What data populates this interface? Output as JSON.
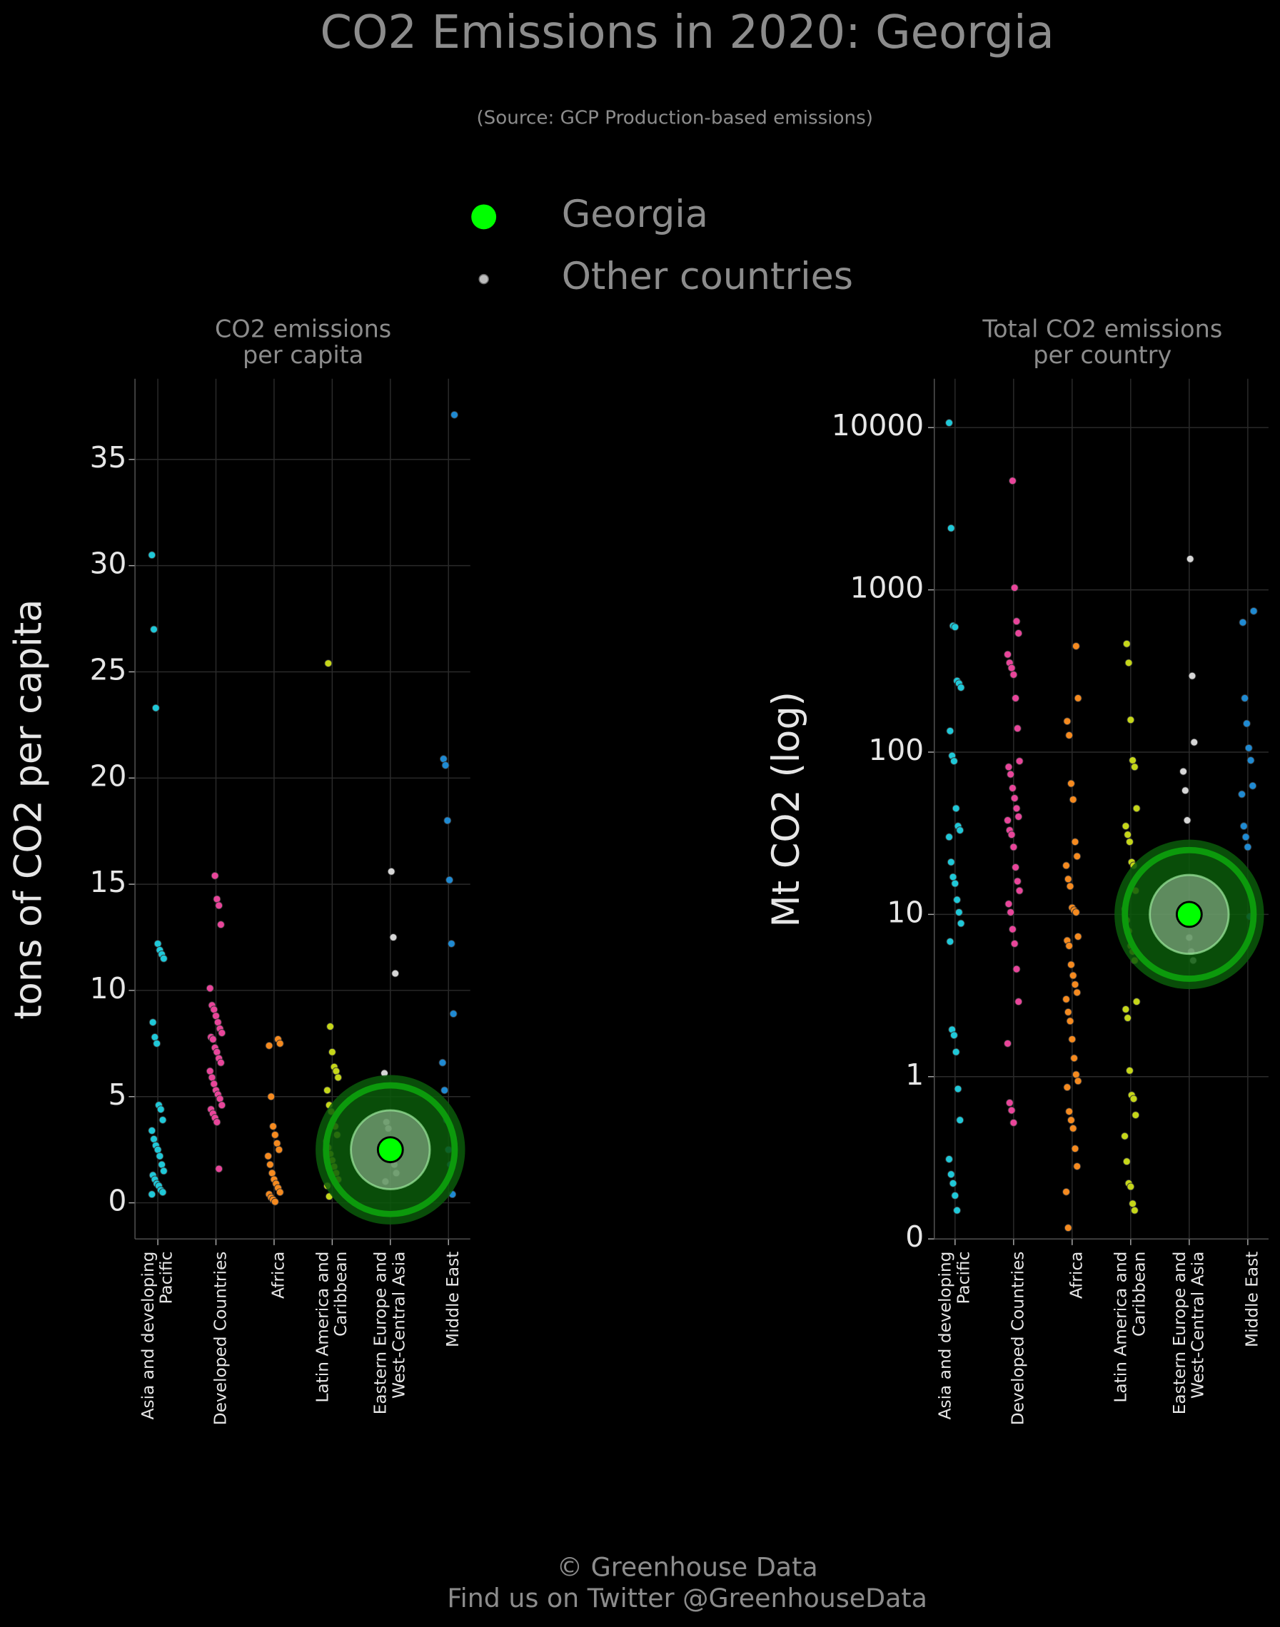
{
  "title": "CO2 Emissions in 2020: Georgia",
  "subtitle": "(Source: GCP Production-based emissions)",
  "legend": [
    {
      "name": "Georgia",
      "color": "#00ff00"
    },
    {
      "name": "Other countries",
      "color": "#bdbdbd"
    }
  ],
  "footer": [
    "© Greenhouse Data",
    "Find us on Twitter @GreenhouseData"
  ],
  "chart_data": [
    {
      "type": "strip",
      "title": "CO2 emissions\nper capita",
      "y_label": "tons of CO2 per capita",
      "categories": [
        "Asia and developing\nPacific",
        "Developed Countries",
        "Africa",
        "Latin America and\nCaribbean",
        "Eastern Europe and\nWest-Central Asia",
        "Middle East"
      ],
      "colors": [
        "#1fc8d8",
        "#e8459a",
        "#f58a1f",
        "#c5d619",
        "#d6d6d6",
        "#1f8ad2"
      ],
      "values": [
        [
          30.5,
          27.0,
          23.3,
          12.2,
          11.9,
          11.7,
          11.5,
          8.5,
          7.8,
          7.5,
          4.6,
          4.4,
          3.9,
          3.4,
          3.0,
          2.7,
          2.5,
          2.2,
          1.8,
          1.5,
          1.3,
          1.1,
          0.9,
          0.8,
          0.6,
          0.5,
          0.4
        ],
        [
          15.4,
          14.3,
          14.0,
          13.1,
          10.1,
          9.3,
          9.1,
          8.8,
          8.5,
          8.2,
          8.0,
          7.8,
          7.7,
          7.3,
          7.1,
          6.8,
          6.6,
          6.2,
          5.9,
          5.6,
          5.3,
          5.1,
          4.9,
          4.6,
          4.4,
          4.2,
          4.0,
          3.8,
          1.6
        ],
        [
          7.7,
          7.5,
          7.4,
          5.0,
          3.6,
          3.2,
          2.8,
          2.5,
          2.2,
          1.8,
          1.4,
          1.1,
          0.9,
          0.7,
          0.5,
          0.4,
          0.25,
          0.15,
          0.05
        ],
        [
          25.4,
          8.3,
          7.1,
          6.4,
          6.2,
          5.9,
          5.3,
          4.6,
          4.3,
          3.9,
          3.6,
          3.2,
          2.9,
          2.6,
          2.3,
          2.0,
          1.7,
          1.4,
          1.1,
          0.8,
          0.3
        ],
        [
          15.6,
          12.5,
          10.8,
          6.1,
          3.8,
          3.5,
          2.9,
          2.4,
          1.8,
          1.4,
          1.0
        ],
        [
          37.1,
          20.9,
          20.6,
          18.0,
          15.2,
          12.2,
          8.9,
          6.6,
          5.3,
          3.9,
          2.5,
          1.8,
          0.4
        ]
      ],
      "highlight": {
        "name": "Georgia",
        "category": "Eastern Europe and\nWest-Central Asia",
        "value": 2.5,
        "color": "#00ff00"
      },
      "ylim": [
        -1.7,
        38.8
      ],
      "yticks": [
        0,
        5,
        10,
        15,
        20,
        25,
        30,
        35
      ],
      "grid": true,
      "log": false
    },
    {
      "type": "strip",
      "title": "Total CO2 emissions\nper country",
      "y_label": "Mt CO2 (log)",
      "categories": [
        "Asia and developing\nPacific",
        "Developed Countries",
        "Africa",
        "Latin America and\nCaribbean",
        "Eastern Europe and\nWest-Central Asia",
        "Middle East"
      ],
      "colors": [
        "#1fc8d8",
        "#e8459a",
        "#f58a1f",
        "#c5d619",
        "#d6d6d6",
        "#1f8ad2"
      ],
      "values": [
        [
          10700,
          2400,
          600,
          590,
          275,
          265,
          250,
          135,
          95,
          88,
          45,
          35,
          33,
          30,
          21,
          17,
          15.5,
          12.3,
          10.3,
          8.8,
          6.8,
          1.95,
          1.8,
          1.42,
          0.84,
          0.54,
          0.31,
          0.25,
          0.22,
          0.185,
          0.15
        ],
        [
          4700,
          1030,
          640,
          540,
          400,
          355,
          330,
          300,
          215,
          140,
          88,
          81,
          73,
          60,
          52,
          45,
          40,
          38,
          33,
          31,
          26,
          19.5,
          16,
          14,
          11.6,
          10.3,
          8.1,
          6.6,
          4.6,
          2.9,
          1.6,
          0.69,
          0.62,
          0.52
        ],
        [
          450,
          215,
          155,
          127,
          64,
          51,
          28,
          22.8,
          20,
          16.5,
          14.9,
          11,
          10.6,
          10.3,
          7.3,
          6.9,
          6.4,
          4.9,
          4.2,
          3.7,
          3.3,
          3.0,
          2.5,
          2.2,
          1.7,
          1.3,
          1.03,
          0.94,
          0.86,
          0.61,
          0.54,
          0.48,
          0.36,
          0.28,
          0.195,
          0.117
        ],
        [
          465,
          355,
          158,
          89,
          81,
          45,
          35,
          31,
          28,
          21,
          20,
          14,
          10.8,
          9.2,
          7.9,
          6.4,
          5.9,
          5.2,
          2.9,
          2.6,
          2.3,
          1.09,
          0.77,
          0.73,
          0.58,
          0.43,
          0.3,
          0.22,
          0.21,
          0.165,
          0.15
        ],
        [
          1550,
          295,
          115,
          76,
          58,
          38,
          7.2,
          5.9,
          5.2
        ],
        [
          740,
          630,
          215,
          150,
          106,
          89,
          62,
          55,
          35,
          30,
          26,
          9.7
        ]
      ],
      "highlight": {
        "name": "Georgia",
        "category": "Eastern Europe and\nWest-Central Asia",
        "value": 10,
        "color": "#00ff00"
      },
      "ylim": [
        0.1,
        20000
      ],
      "yticks": [
        {
          "value": 0.1,
          "label": "0"
        },
        1,
        10,
        100,
        1000,
        10000
      ],
      "grid": true,
      "log": true
    }
  ]
}
